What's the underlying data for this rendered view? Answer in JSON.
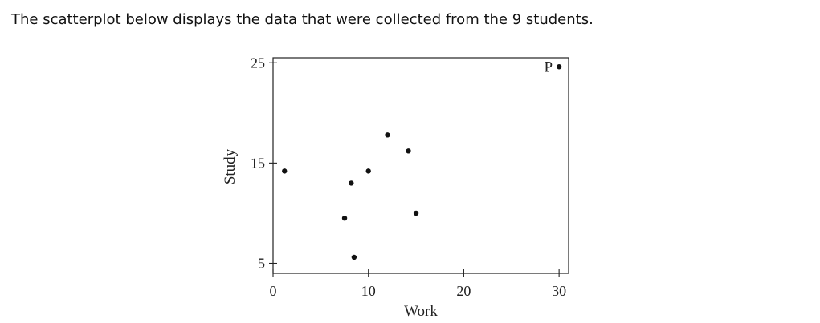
{
  "caption": "The scatterplot below displays the data that were collected from the 9 students.",
  "chart_data": {
    "type": "scatter",
    "title": "",
    "xlabel": "Work",
    "ylabel": "Study",
    "xlim": [
      0,
      31
    ],
    "ylim": [
      4,
      25.5
    ],
    "xticks": [
      0,
      10,
      20,
      30
    ],
    "yticks": [
      5,
      15,
      25
    ],
    "grid": false,
    "points": [
      {
        "x": 1.2,
        "y": 14.2
      },
      {
        "x": 7.5,
        "y": 9.5
      },
      {
        "x": 8.2,
        "y": 13.0
      },
      {
        "x": 8.5,
        "y": 5.6
      },
      {
        "x": 10.0,
        "y": 14.2
      },
      {
        "x": 12.0,
        "y": 17.8
      },
      {
        "x": 14.2,
        "y": 16.2
      },
      {
        "x": 15.0,
        "y": 10.0
      },
      {
        "x": 30.0,
        "y": 24.6,
        "label": "P"
      }
    ]
  }
}
